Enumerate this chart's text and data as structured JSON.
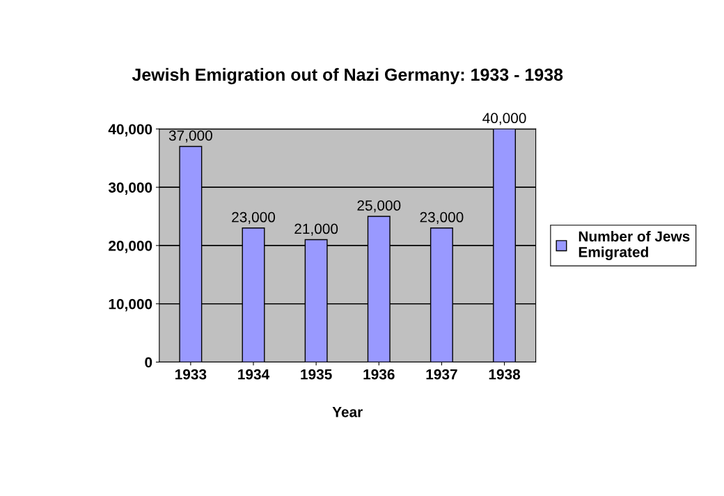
{
  "chart_data": {
    "type": "bar",
    "title": "Jewish Emigration out of Nazi Germany: 1933 - 1938",
    "xlabel": "Year",
    "categories": [
      "1933",
      "1934",
      "1935",
      "1936",
      "1937",
      "1938"
    ],
    "series": [
      {
        "name": "Number of Jews Emigrated",
        "color": "#9999ff",
        "values": [
          37000,
          23000,
          21000,
          25000,
          23000,
          40000
        ],
        "value_labels": [
          "37,000",
          "23,000",
          "21,000",
          "25,000",
          "23,000",
          "40,000"
        ]
      }
    ],
    "ylim": [
      0,
      40000
    ],
    "yticks": [
      0,
      {
        "value": 10000,
        "label": "10,000"
      },
      {
        "value": 20000,
        "label": "20,000"
      },
      {
        "value": 30000,
        "label": "30,000"
      },
      {
        "value": 40000,
        "label": "40,000"
      }
    ],
    "grid": "y",
    "legend": "right"
  }
}
